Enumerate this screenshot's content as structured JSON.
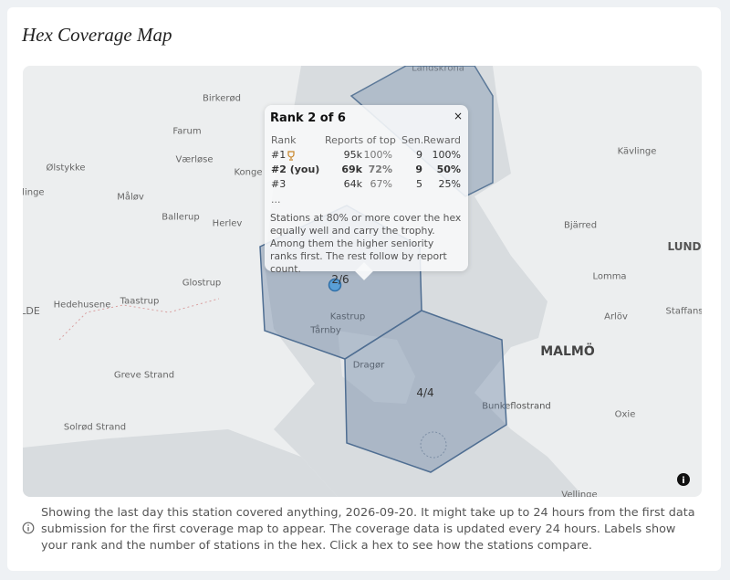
{
  "header": {
    "title": "Hex Coverage Map"
  },
  "map": {
    "place_labels": [
      "Landskrona",
      "Birkerød",
      "Farum",
      "Værløse",
      "Konge",
      "Ølstykke",
      "Måløv",
      "llinge",
      "Ballerup",
      "Herlev",
      "Kävlinge",
      "Bjärred",
      "LUND",
      "Lomma",
      "Glostrup",
      "Taastrup",
      "Hedehusene",
      "LDE",
      "Kastrup",
      "Tårnby",
      "Arlöv",
      "Staffanst",
      "MALMÖ",
      "Dragør",
      "Greve Strand",
      "Bunkeflostrand",
      "Oxie",
      "Solrød Strand",
      "Vellinge"
    ],
    "hex_labels": [
      "2/6",
      "4/4"
    ],
    "info_button": "i"
  },
  "tooltip": {
    "title": "Rank 2 of 6",
    "close": "×",
    "columns": [
      "Rank",
      "Reports of top",
      "Sen.",
      "Reward"
    ],
    "rows": [
      [
        "#1",
        "95k",
        "100%",
        "9",
        "100%"
      ],
      [
        "#2 (you)",
        "69k",
        "72%",
        "9",
        "50%"
      ],
      [
        "#3",
        "64k",
        "67%",
        "5",
        "25%"
      ]
    ],
    "more": "...",
    "description": "Stations at 80% or more cover the hex equally well and carry the trophy. Among them the higher seniority ranks first. The rest follow by report count."
  },
  "footer": {
    "text": "Showing the last day this station covered anything, 2026-09-20. It might take up to 24 hours from the first data submission for the first coverage map to appear. The coverage data is updated every 24 hours. Labels show your rank and the number of stations in the hex. Click a hex to see how the stations compare."
  }
}
